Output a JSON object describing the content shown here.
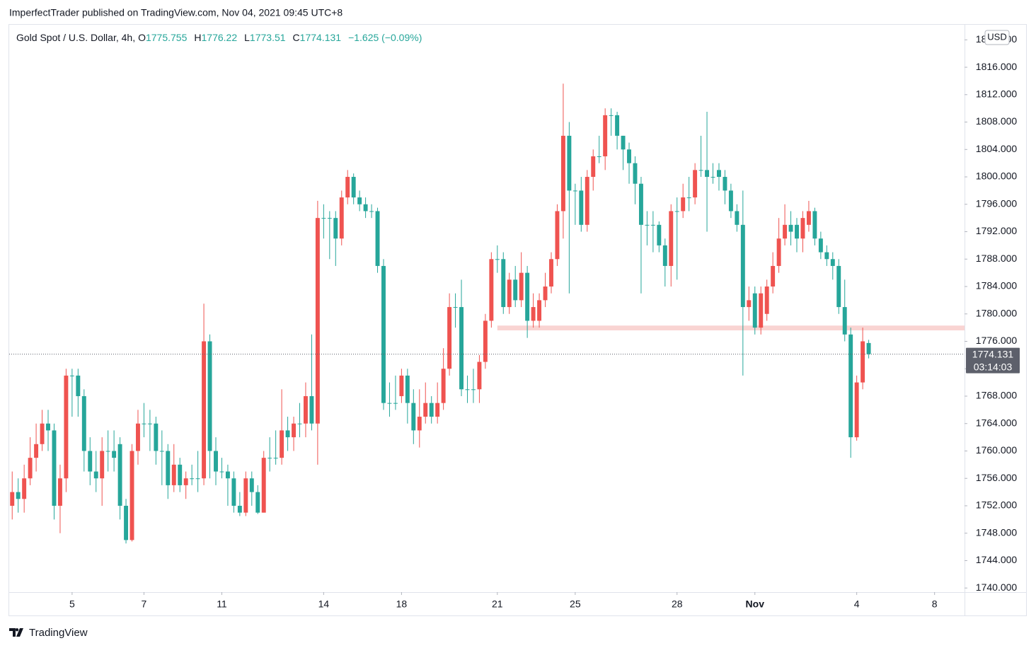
{
  "page": {
    "byline": "ImperfectTrader published on TradingView.com, Nov 04, 2021 09:45 UTC+8",
    "brand": "TradingView"
  },
  "chart_data": {
    "type": "candlestick",
    "symbol": "Gold Spot / U.S. Dollar, 4h,",
    "ohlc_labels": [
      "O",
      "H",
      "L",
      "C"
    ],
    "change": "−1.625 (−0.09%)",
    "currency": "USD",
    "countdown": "03:14:03",
    "up_color": "#ef5350",
    "down_color": "#26a69a",
    "open": [
      1752,
      1754,
      1753,
      1756,
      1759,
      1761,
      1764,
      1763,
      1752,
      1756,
      1771,
      1771,
      1768,
      1760,
      1757,
      1756,
      1760,
      1760,
      1761,
      1752,
      1747,
      1760,
      1764,
      1764,
      1764,
      1760,
      1760,
      1755,
      1758,
      1755,
      1756,
      1756,
      1756,
      1776,
      1760,
      1757,
      1757,
      1756,
      1752,
      1751,
      1756,
      1754,
      1751,
      1759,
      1759,
      1759,
      1763,
      1762,
      1764,
      1764,
      1768,
      1764,
      1794,
      1794,
      1794,
      1791,
      1797,
      1800,
      1797,
      1796,
      1795,
      1795,
      1787,
      1767,
      1767,
      1768,
      1771,
      1767,
      1763,
      1765,
      1767,
      1765,
      1767,
      1772,
      1781,
      1781,
      1769,
      1769,
      1769,
      1773,
      1779,
      1788,
      1788,
      1781,
      1785,
      1782,
      1786,
      1779,
      1779,
      1782,
      1784,
      1788,
      1795,
      1806,
      1798,
      1798,
      1793,
      1800,
      1803,
      1803,
      1809,
      1809,
      1806,
      1804,
      1802,
      1799,
      1793,
      1793,
      1793,
      1790,
      1787,
      1795,
      1795,
      1797,
      1797,
      1801,
      1801,
      1800,
      1801,
      1800,
      1798,
      1795,
      1793,
      1781,
      1783,
      1778,
      1780,
      1784,
      1787,
      1791,
      1793,
      1793,
      1791,
      1793,
      1795,
      1791,
      1789,
      1788,
      1787,
      1781,
      1777,
      1762,
      1770,
      1775.755
    ],
    "high": [
      1757,
      1756,
      1758,
      1762,
      1764,
      1766,
      1766,
      1764,
      1758,
      1772,
      1772,
      1772,
      1769,
      1762,
      1760,
      1762,
      1763,
      1763,
      1762,
      1753,
      1761,
      1766,
      1767,
      1766,
      1765,
      1763,
      1761,
      1761,
      1759,
      1757,
      1758,
      1760,
      1781.5,
      1777,
      1762,
      1759,
      1758,
      1757,
      1754,
      1757,
      1757,
      1755,
      1760,
      1762,
      1763,
      1769,
      1765,
      1765,
      1767,
      1770,
      1777,
      1796.5,
      1796,
      1795,
      1795,
      1798,
      1801,
      1800.5,
      1798,
      1797,
      1796,
      1795.5,
      1788,
      1770,
      1771,
      1772,
      1772,
      1769,
      1769,
      1770,
      1768,
      1770,
      1775,
      1783,
      1783,
      1785,
      1771,
      1772,
      1774,
      1780,
      1789,
      1790,
      1789,
      1786,
      1787,
      1789,
      1787,
      1783,
      1783,
      1786,
      1789,
      1796,
      1813.6,
      1808,
      1799,
      1800,
      1801,
      1804,
      1806,
      1810,
      1810,
      1809.5,
      1806,
      1805,
      1803,
      1800,
      1795,
      1795,
      1793.5,
      1791,
      1796,
      1797,
      1799,
      1800,
      1802,
      1806,
      1809.5,
      1802,
      1802,
      1801,
      1799,
      1796,
      1798,
      1784,
      1784,
      1784,
      1785,
      1789,
      1794,
      1796,
      1795,
      1794,
      1795,
      1796.5,
      1795.5,
      1792,
      1790,
      1789,
      1788,
      1785,
      1778,
      1771,
      1778,
      1776.22
    ],
    "low": [
      1750,
      1751,
      1751,
      1755,
      1757,
      1760,
      1760,
      1750,
      1748,
      1754,
      1765,
      1765,
      1757,
      1755,
      1754,
      1752,
      1757,
      1757,
      1750,
      1746.5,
      1746.8,
      1758,
      1762,
      1760,
      1758,
      1755,
      1753,
      1754,
      1754,
      1753,
      1755,
      1754,
      1755,
      1756,
      1755,
      1756,
      1752,
      1751,
      1750.5,
      1750.5,
      1752,
      1750.8,
      1751,
      1757,
      1758,
      1758,
      1760,
      1760,
      1762,
      1762,
      1763,
      1758,
      1791,
      1788,
      1787,
      1790,
      1796,
      1796,
      1795,
      1794,
      1794,
      1786,
      1766,
      1765,
      1766,
      1767,
      1764,
      1761,
      1760.5,
      1764,
      1764,
      1764,
      1766,
      1771,
      1778,
      1768,
      1767,
      1767,
      1767,
      1772,
      1778,
      1786,
      1780,
      1780,
      1781,
      1781,
      1776.5,
      1778,
      1778,
      1781,
      1783,
      1787,
      1791,
      1783,
      1793,
      1792,
      1792,
      1798,
      1802,
      1801,
      1806,
      1804,
      1801,
      1799,
      1796,
      1783,
      1790,
      1789,
      1789,
      1784,
      1784,
      1785,
      1794,
      1795,
      1796,
      1800,
      1792,
      1799,
      1798,
      1796,
      1794,
      1792,
      1771,
      1779,
      1777,
      1777,
      1779,
      1783,
      1786,
      1790,
      1790,
      1789,
      1789,
      1792,
      1790,
      1788,
      1787,
      1785,
      1780,
      1776,
      1759,
      1761.5,
      1769,
      1773.51
    ],
    "close": [
      1754,
      1753,
      1756,
      1759,
      1761,
      1764,
      1763,
      1752,
      1756,
      1771,
      1771,
      1768,
      1760,
      1757,
      1756,
      1760,
      1760,
      1759,
      1752,
      1747,
      1760,
      1764,
      1764,
      1764,
      1760,
      1760,
      1755,
      1758,
      1755,
      1756,
      1756,
      1756,
      1776,
      1760,
      1757,
      1757,
      1756,
      1752,
      1751,
      1756,
      1754,
      1751,
      1759,
      1759,
      1759,
      1763,
      1762,
      1764,
      1764,
      1768,
      1764,
      1794,
      1794,
      1794,
      1791,
      1797,
      1800,
      1797,
      1796,
      1795,
      1795,
      1787,
      1767,
      1767,
      1767,
      1771,
      1767,
      1763,
      1765,
      1767,
      1765,
      1767,
      1772,
      1781,
      1781,
      1769,
      1769,
      1769,
      1773,
      1779,
      1788,
      1788,
      1781,
      1785,
      1782,
      1786,
      1779,
      1781,
      1782,
      1784,
      1788,
      1795,
      1806,
      1798,
      1798,
      1793,
      1800,
      1803,
      1803,
      1809,
      1809,
      1806,
      1804,
      1802,
      1799,
      1793,
      1793,
      1793,
      1790,
      1787,
      1795,
      1795,
      1797,
      1797,
      1801,
      1801,
      1800,
      1800,
      1800,
      1798,
      1795,
      1793,
      1781,
      1782,
      1778,
      1783,
      1784,
      1787,
      1791,
      1793,
      1792,
      1791,
      1794,
      1795,
      1791,
      1789,
      1788,
      1787,
      1781,
      1777,
      1762,
      1770,
      1776,
      1774.131
    ],
    "zone": {
      "low": 1777.6,
      "high": 1778.3,
      "start": 81
    },
    "xlim": [
      -0.5,
      159
    ],
    "xticks": [
      {
        "value": 10,
        "label": "5"
      },
      {
        "value": 22,
        "label": "7"
      },
      {
        "value": 35,
        "label": "11"
      },
      {
        "value": 52,
        "label": "14"
      },
      {
        "value": 65,
        "label": "18"
      },
      {
        "value": 81,
        "label": "21"
      },
      {
        "value": 94,
        "label": "25"
      },
      {
        "value": 111,
        "label": "28"
      },
      {
        "value": 124,
        "label": "Nov"
      },
      {
        "value": 141,
        "label": "4"
      },
      {
        "value": 154,
        "label": "8"
      }
    ],
    "ylim": [
      1739.4,
      1822.2
    ],
    "yticks": [
      {
        "value": 1740,
        "label": "1740.000"
      },
      {
        "value": 1744,
        "label": "1744.000"
      },
      {
        "value": 1748,
        "label": "1748.000"
      },
      {
        "value": 1752,
        "label": "1752.000"
      },
      {
        "value": 1756,
        "label": "1756.000"
      },
      {
        "value": 1760,
        "label": "1760.000"
      },
      {
        "value": 1764,
        "label": "1764.000"
      },
      {
        "value": 1768,
        "label": "1768.000"
      },
      {
        "value": 1772,
        "label": "1772.000"
      },
      {
        "value": 1776,
        "label": "1776.000"
      },
      {
        "value": 1780,
        "label": "1780.000"
      },
      {
        "value": 1784,
        "label": "1784.000"
      },
      {
        "value": 1788,
        "label": "1788.000"
      },
      {
        "value": 1792,
        "label": "1792.000"
      },
      {
        "value": 1796,
        "label": "1796.000"
      },
      {
        "value": 1800,
        "label": "1800.000"
      },
      {
        "value": 1804,
        "label": "1804.000"
      },
      {
        "value": 1808,
        "label": "1808.000"
      },
      {
        "value": 1812,
        "label": "1812.000"
      },
      {
        "value": 1816,
        "label": "1816.000"
      },
      {
        "value": 1820,
        "label": "1820.000"
      }
    ]
  }
}
